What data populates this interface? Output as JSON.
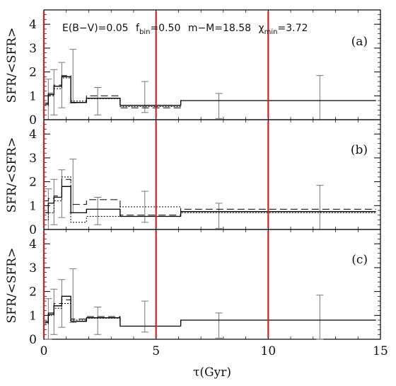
{
  "figure": {
    "ylabel": "SFR/<SFR>",
    "xlabel": "τ(Gyr)",
    "annotation": {
      "ebv": "E(B−V)=0.05",
      "fbin_f": "f",
      "fbin_sub": "bin",
      "fbin_val": "=0.50",
      "dm": "m−M=18.58",
      "chi_sym": "χ",
      "chi_sub": "min",
      "chi_val": "=3.72"
    },
    "red_line_color": "#cc2222"
  },
  "chart_data": [
    {
      "type": "line",
      "panel": "(a)",
      "xlim": [
        0,
        15
      ],
      "ylim": [
        0,
        4.6
      ],
      "xticks": [
        0,
        5,
        10,
        15
      ],
      "yticks": [
        0,
        1,
        2,
        3,
        4
      ],
      "red_lines_x": [
        0,
        5,
        10
      ],
      "series": [
        {
          "style": "solid",
          "edges": [
            0.05,
            0.2,
            0.45,
            0.8,
            1.2,
            1.9,
            3.4,
            6.1,
            10.1,
            14.8
          ],
          "values": [
            0.65,
            1.05,
            1.4,
            1.8,
            0.72,
            0.9,
            0.6,
            0.8,
            0.8
          ]
        },
        {
          "style": "dotted",
          "edges": [
            0.05,
            0.2,
            0.45,
            0.8,
            1.2,
            1.9,
            3.4,
            6.1,
            10.1,
            14.8
          ],
          "values": [
            0.6,
            1.0,
            1.3,
            1.75,
            0.78,
            0.88,
            0.55,
            0.8,
            0.8
          ]
        },
        {
          "style": "dashed",
          "edges": [
            0.05,
            0.2,
            0.45,
            0.8,
            1.2,
            1.9,
            3.4,
            6.1,
            10.1,
            14.8
          ],
          "values": [
            0.7,
            1.1,
            1.45,
            1.85,
            0.72,
            1.0,
            0.5,
            0.8,
            0.8
          ]
        }
      ],
      "errorbars": [
        {
          "x": 0.2,
          "lo": 0.0,
          "hi": 1.7
        },
        {
          "x": 0.45,
          "lo": 0.2,
          "hi": 2.1
        },
        {
          "x": 0.8,
          "lo": 0.5,
          "hi": 2.4
        },
        {
          "x": 1.3,
          "lo": 0.7,
          "hi": 2.95
        },
        {
          "x": 2.4,
          "lo": 0.2,
          "hi": 1.35
        },
        {
          "x": 4.5,
          "lo": 0.3,
          "hi": 1.6
        },
        {
          "x": 7.8,
          "lo": 0.05,
          "hi": 1.1
        },
        {
          "x": 12.3,
          "lo": 0.0,
          "hi": 1.85
        }
      ]
    },
    {
      "type": "line",
      "panel": "(b)",
      "xlim": [
        0,
        15
      ],
      "ylim": [
        0,
        4.6
      ],
      "xticks": [
        0,
        5,
        10,
        15
      ],
      "yticks": [
        0,
        1,
        2,
        3,
        4
      ],
      "red_lines_x": [
        0,
        5,
        10
      ],
      "series": [
        {
          "style": "solid",
          "edges": [
            0.05,
            0.2,
            0.45,
            0.8,
            1.2,
            1.9,
            3.4,
            6.1,
            10.1,
            14.8
          ],
          "values": [
            0.7,
            1.1,
            1.35,
            1.8,
            0.7,
            0.85,
            0.55,
            0.75,
            0.75
          ]
        },
        {
          "style": "dotted",
          "edges": [
            0.05,
            0.2,
            0.45,
            0.8,
            1.2,
            1.9,
            3.4,
            6.1,
            10.1,
            14.8
          ],
          "values": [
            0.4,
            0.7,
            1.2,
            2.2,
            0.3,
            0.55,
            0.95,
            0.7,
            0.7
          ]
        },
        {
          "style": "dashed",
          "edges": [
            0.05,
            0.2,
            0.45,
            0.8,
            1.2,
            1.9,
            3.4,
            6.1,
            10.1,
            14.8
          ],
          "values": [
            1.2,
            1.3,
            1.4,
            2.1,
            1.05,
            1.25,
            0.6,
            0.85,
            0.85
          ]
        }
      ],
      "errorbars": [
        {
          "x": 0.2,
          "lo": 0.0,
          "hi": 1.7
        },
        {
          "x": 0.45,
          "lo": 0.2,
          "hi": 2.1
        },
        {
          "x": 0.8,
          "lo": 0.5,
          "hi": 2.5
        },
        {
          "x": 1.3,
          "lo": 0.7,
          "hi": 2.95
        },
        {
          "x": 2.4,
          "lo": 0.2,
          "hi": 1.35
        },
        {
          "x": 4.5,
          "lo": 0.3,
          "hi": 1.6
        },
        {
          "x": 7.8,
          "lo": 0.05,
          "hi": 1.1
        },
        {
          "x": 12.3,
          "lo": 0.0,
          "hi": 1.85
        }
      ]
    },
    {
      "type": "line",
      "panel": "(c)",
      "xlim": [
        0,
        15
      ],
      "ylim": [
        0,
        4.6
      ],
      "xticks": [
        0,
        5,
        10,
        15
      ],
      "yticks": [
        0,
        1,
        2,
        3,
        4
      ],
      "red_lines_x": [
        0,
        5,
        10
      ],
      "series": [
        {
          "style": "solid",
          "edges": [
            0.05,
            0.2,
            0.45,
            0.8,
            1.2,
            1.9,
            3.4,
            6.1,
            10.1,
            14.8
          ],
          "values": [
            0.7,
            1.05,
            1.4,
            1.8,
            0.75,
            0.9,
            0.55,
            0.8,
            0.8
          ]
        },
        {
          "style": "dotted",
          "edges": [
            0.05,
            0.2,
            0.45,
            0.8,
            1.2,
            1.9,
            3.4,
            6.1,
            10.1,
            14.8
          ],
          "values": [
            0.65,
            1.0,
            1.3,
            1.5,
            0.8,
            0.88,
            0.55,
            0.8,
            0.8
          ]
        },
        {
          "style": "dashed",
          "edges": [
            0.05,
            0.2,
            0.45,
            0.8,
            1.2,
            1.9,
            3.4,
            6.1,
            10.1,
            14.8
          ],
          "values": [
            0.75,
            1.1,
            1.5,
            1.65,
            0.85,
            0.95,
            0.55,
            0.8,
            0.8
          ]
        }
      ],
      "errorbars": [
        {
          "x": 0.2,
          "lo": 0.0,
          "hi": 1.7
        },
        {
          "x": 0.45,
          "lo": 0.2,
          "hi": 2.1
        },
        {
          "x": 0.8,
          "lo": 0.5,
          "hi": 2.5
        },
        {
          "x": 1.3,
          "lo": 0.7,
          "hi": 2.95
        },
        {
          "x": 2.4,
          "lo": 0.2,
          "hi": 1.35
        },
        {
          "x": 4.5,
          "lo": 0.3,
          "hi": 1.6
        },
        {
          "x": 7.8,
          "lo": 0.05,
          "hi": 1.1
        },
        {
          "x": 12.3,
          "lo": 0.0,
          "hi": 1.85
        }
      ]
    }
  ]
}
